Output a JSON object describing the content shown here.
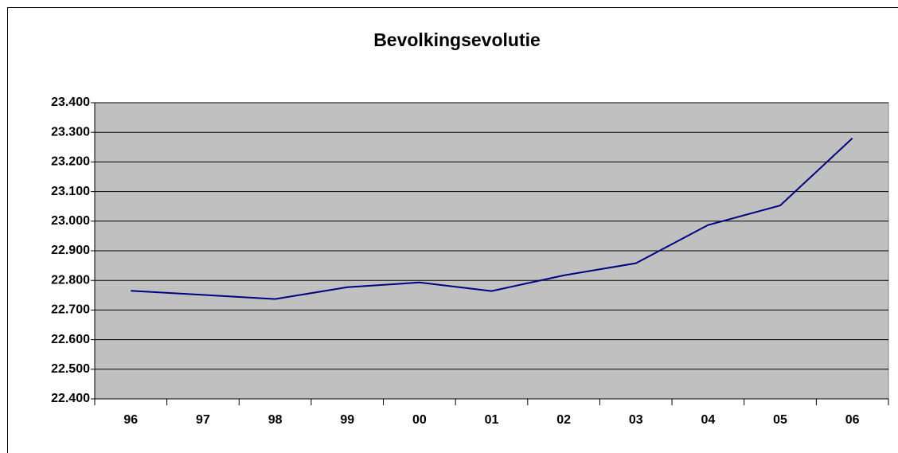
{
  "chart_data": {
    "type": "line",
    "title": "Bevolkingsevolutie",
    "categories": [
      "96",
      "97",
      "98",
      "99",
      "00",
      "01",
      "02",
      "03",
      "04",
      "05",
      "06"
    ],
    "series": [
      {
        "color": "#000080",
        "values": [
          22765,
          22751,
          22737,
          22777,
          22793,
          22764,
          22817,
          22858,
          22987,
          23053,
          23280
        ]
      }
    ],
    "ylim": [
      22400,
      23400
    ],
    "yticks": [
      {
        "value": 22400,
        "label": "22.400"
      },
      {
        "value": 22500,
        "label": "22.500"
      },
      {
        "value": 22600,
        "label": "22.600"
      },
      {
        "value": 22700,
        "label": "22.700"
      },
      {
        "value": 22800,
        "label": "22.800"
      },
      {
        "value": 22900,
        "label": "22.900"
      },
      {
        "value": 23000,
        "label": "23.000"
      },
      {
        "value": 23100,
        "label": "23.100"
      },
      {
        "value": 23200,
        "label": "23.200"
      },
      {
        "value": 23300,
        "label": "23.300"
      },
      {
        "value": 23400,
        "label": "23.400"
      }
    ],
    "grid": true
  }
}
